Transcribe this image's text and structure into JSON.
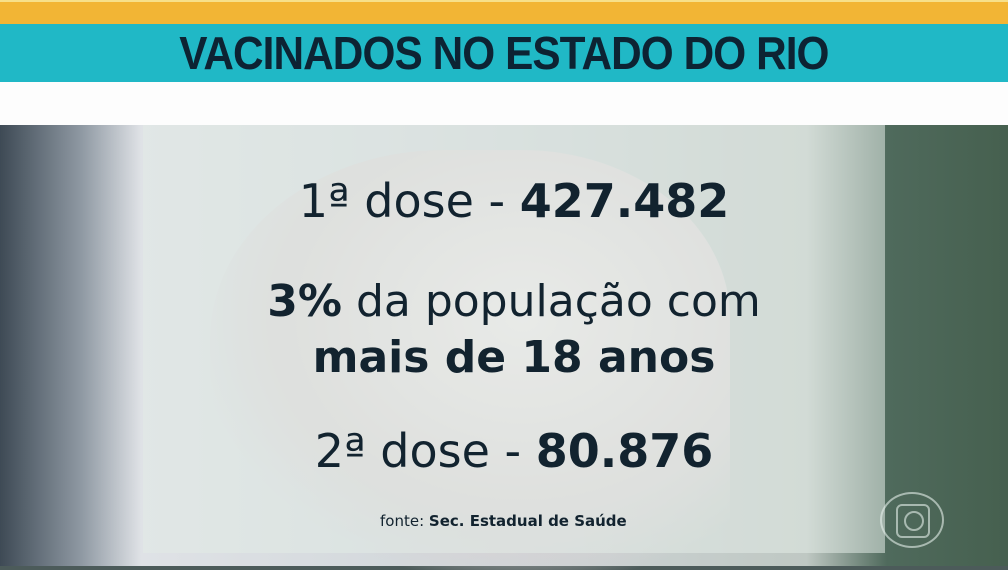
{
  "header": {
    "title": "VACINADOS NO ESTADO DO RIO"
  },
  "stats": {
    "first_dose_label": "1ª dose - ",
    "first_dose_value": "427.482",
    "percent_value": "3%",
    "percent_text": " da população com",
    "age_text": "mais de 18 anos",
    "second_dose_label": "2ª dose - ",
    "second_dose_value": "80.876"
  },
  "source": {
    "label": "fonte: ",
    "value": "Sec. Estadual de Saúde"
  },
  "logo": {
    "icon": "globo-logo-icon"
  },
  "colors": {
    "stripe": "#f2b535",
    "title_bar": "#20b8c6",
    "text": "#12232f"
  }
}
